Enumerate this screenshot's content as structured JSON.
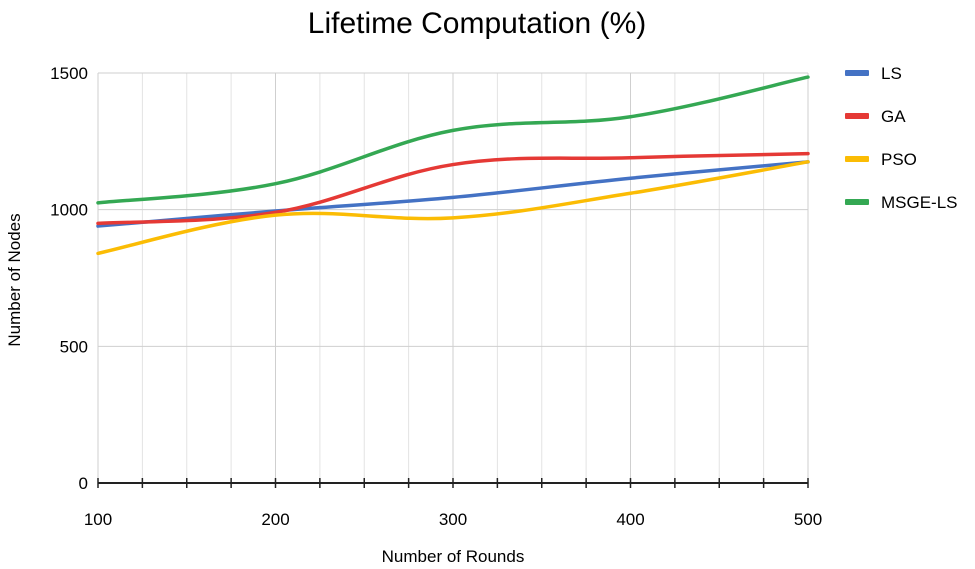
{
  "chart_data": {
    "type": "line",
    "title": "Lifetime Computation (%)",
    "xlabel": "Number of Rounds",
    "ylabel": "Number of Nodes",
    "x": [
      100,
      200,
      300,
      400,
      500
    ],
    "xlim": [
      100,
      500
    ],
    "ylim": [
      0,
      1500
    ],
    "x_ticks": [
      "100",
      "200",
      "300",
      "400",
      "500"
    ],
    "y_ticks": [
      "0",
      "500",
      "1000",
      "1500"
    ],
    "grid": true,
    "legend_position": "right",
    "series": [
      {
        "name": "LS",
        "color": "#4472c4",
        "values": [
          940,
          995,
          1045,
          1115,
          1175
        ]
      },
      {
        "name": "GA",
        "color": "#e53935",
        "values": [
          950,
          990,
          1165,
          1190,
          1205
        ]
      },
      {
        "name": "PSO",
        "color": "#fbbc04",
        "values": [
          840,
          980,
          970,
          1060,
          1175
        ]
      },
      {
        "name": "MSGE-LS",
        "color": "#34a853",
        "values": [
          1025,
          1095,
          1290,
          1340,
          1485
        ]
      }
    ]
  }
}
